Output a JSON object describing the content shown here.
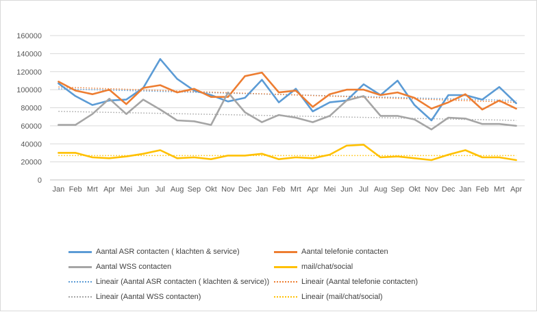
{
  "chart_data": {
    "type": "line",
    "title": "",
    "xlabel": "",
    "ylabel": "",
    "ylim": [
      0,
      160000
    ],
    "yticks": [
      0,
      20000,
      40000,
      60000,
      80000,
      100000,
      120000,
      140000,
      160000
    ],
    "grid": true,
    "legend_position": "bottom",
    "categories": [
      "Jan",
      "Feb",
      "Mrt",
      "Apr",
      "Mei",
      "Jun",
      "Jul",
      "Aug",
      "Sep",
      "Okt",
      "Nov",
      "Dec",
      "Jan",
      "Feb",
      "Mrt",
      "Apr",
      "Mei",
      "Jun",
      "Jul",
      "Aug",
      "Sep",
      "Okt",
      "Nov",
      "Dec",
      "Jan",
      "Feb",
      "Mrt",
      "Apr"
    ],
    "series": [
      {
        "name": "Aantal ASR contacten ( klachten & service)",
        "color": "#5b9bd5",
        "values": [
          107000,
          93000,
          83000,
          88000,
          89000,
          102000,
          134000,
          112000,
          99000,
          94000,
          87000,
          91000,
          111000,
          86000,
          101000,
          76000,
          86000,
          88000,
          106000,
          94000,
          110000,
          83000,
          66000,
          94000,
          94000,
          89000,
          103000,
          85000
        ]
      },
      {
        "name": "Aantal telefonie contacten",
        "color": "#ed7d31",
        "values": [
          109000,
          99000,
          95000,
          100000,
          84000,
          102000,
          105000,
          97000,
          101000,
          92000,
          92000,
          115000,
          119000,
          97000,
          99000,
          81000,
          95000,
          100000,
          100000,
          94000,
          97000,
          91000,
          79000,
          86000,
          95000,
          78000,
          88000,
          79000
        ]
      },
      {
        "name": "Aantal WSS contacten",
        "color": "#a5a5a5",
        "values": [
          61000,
          61000,
          73000,
          90000,
          73000,
          89000,
          78000,
          66000,
          65000,
          61000,
          97000,
          75000,
          64000,
          72000,
          69000,
          64000,
          71000,
          88000,
          93000,
          71000,
          71000,
          67000,
          56000,
          69000,
          68000,
          62000,
          62000,
          60000
        ]
      },
      {
        "name": "mail/chat/social",
        "color": "#ffc000",
        "values": [
          30000,
          30000,
          25000,
          24000,
          26000,
          29000,
          33000,
          24000,
          25000,
          23000,
          27000,
          27000,
          29000,
          23000,
          25000,
          24000,
          28000,
          38000,
          39000,
          25000,
          26000,
          24000,
          22000,
          28000,
          33000,
          25000,
          25000,
          22000
        ]
      }
    ],
    "trendlines": [
      {
        "name": "Lineair (Aantal ASR contacten ( klachten & service))",
        "color": "#5b9bd5",
        "values": [
          101000,
          88000
        ]
      },
      {
        "name": "Lineair (Aantal telefonie contacten)",
        "color": "#ed7d31",
        "values": [
          103000,
          86000
        ]
      },
      {
        "name": "Lineair (Aantal WSS contacten)",
        "color": "#a5a5a5",
        "values": [
          76000,
          66000
        ]
      },
      {
        "name": "Lineair (mail/chat/social)",
        "color": "#ffc000",
        "values": [
          27000,
          27000
        ]
      }
    ]
  }
}
